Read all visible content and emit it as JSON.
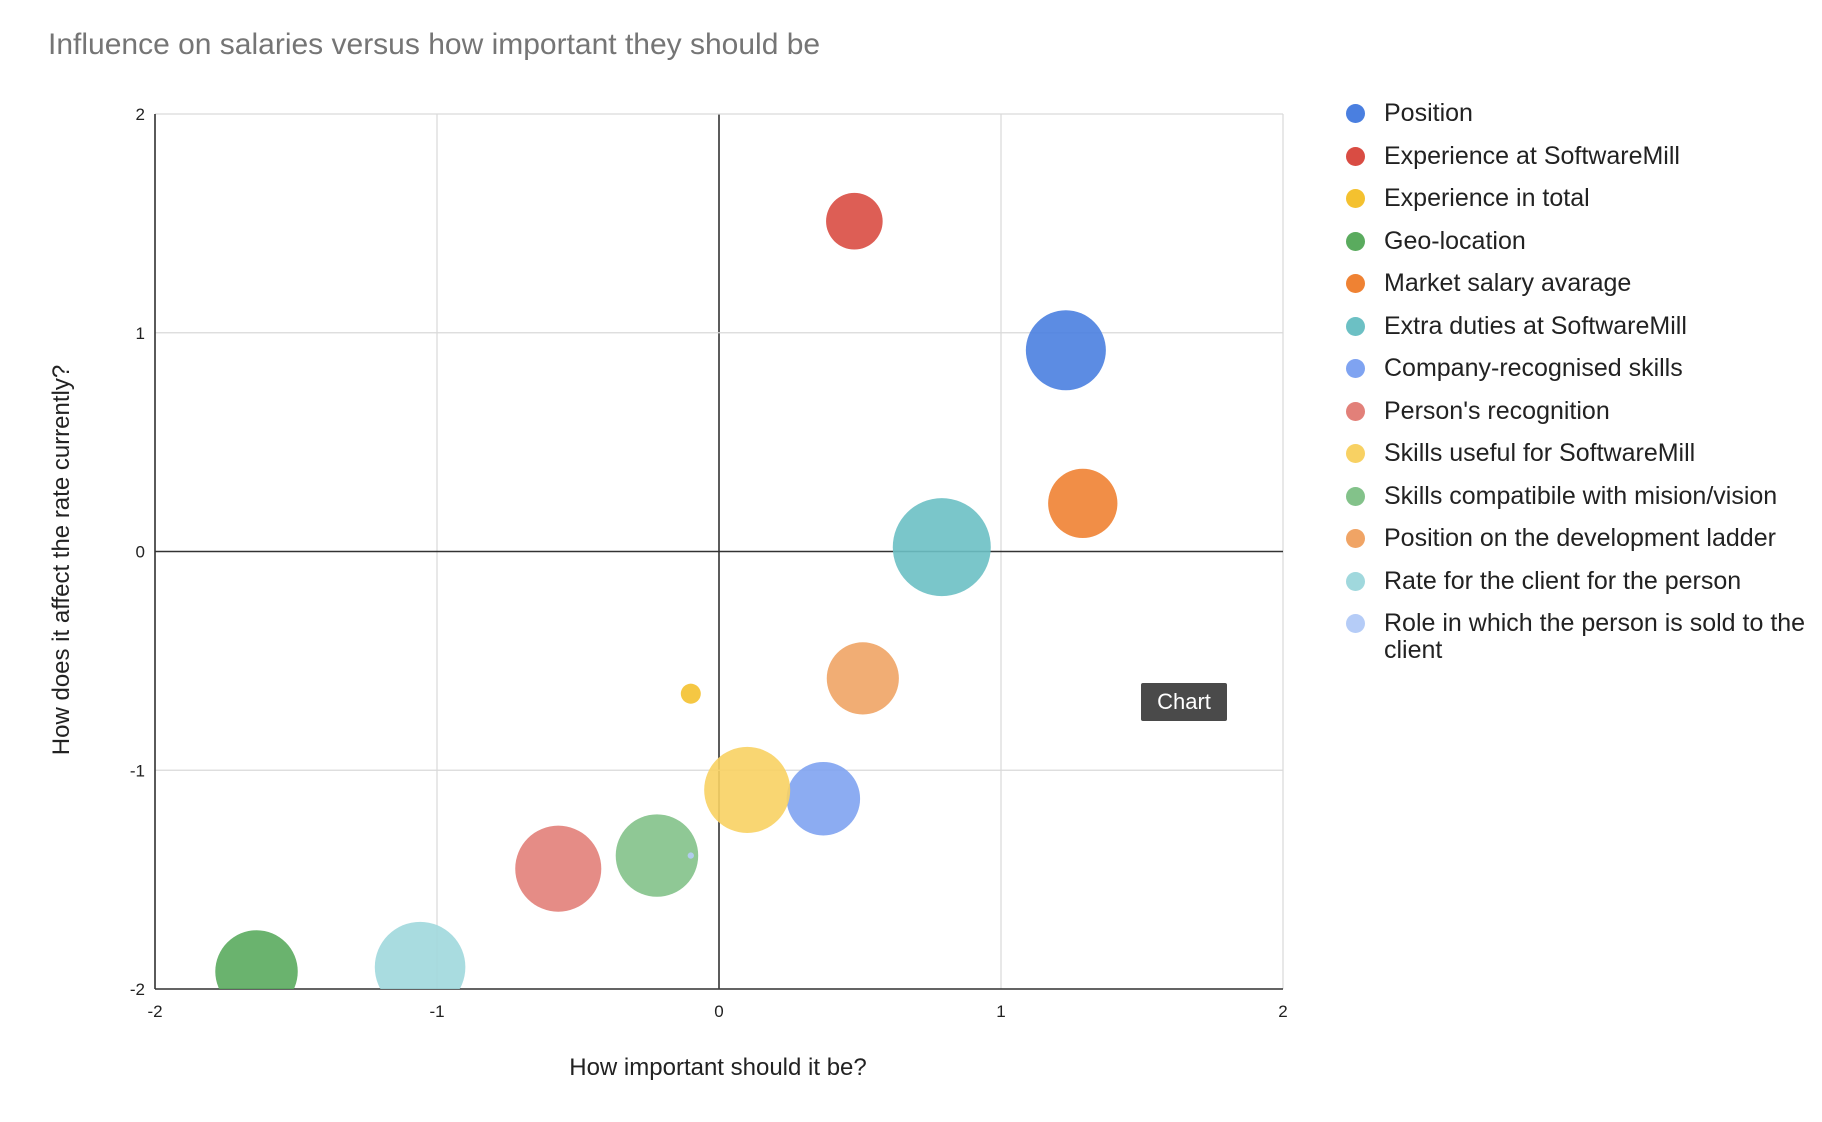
{
  "chart_data": {
    "type": "bubble",
    "title": "Influence on salaries versus how important they should be",
    "xlabel": "How important should it be?",
    "ylabel": "How does it affect the rate currently?",
    "xlim": [
      -2,
      2
    ],
    "ylim": [
      -2,
      2
    ],
    "x_ticks": [
      "-2",
      "-1",
      "0",
      "1",
      "2"
    ],
    "y_ticks": [
      "-2",
      "-1",
      "0",
      "1",
      "2"
    ],
    "grid": true,
    "legend_position": "right",
    "series": [
      {
        "name": "Position",
        "x": 1.23,
        "y": 0.92,
        "size": 3.2,
        "color": "#4a7fe0"
      },
      {
        "name": "Experience at SoftwareMill",
        "x": 0.48,
        "y": 1.51,
        "size": 1.6,
        "color": "#d94c43"
      },
      {
        "name": "Experience in total",
        "x": -0.1,
        "y": -0.65,
        "size": 0.2,
        "color": "#f4c12f"
      },
      {
        "name": "Geo-location",
        "x": -1.64,
        "y": -1.92,
        "size": 3.4,
        "color": "#5aab5e"
      },
      {
        "name": "Market salary avarage",
        "x": 1.29,
        "y": 0.22,
        "size": 2.4,
        "color": "#ef8233"
      },
      {
        "name": "Extra duties at SoftwareMill",
        "x": 0.79,
        "y": 0.02,
        "size": 4.8,
        "color": "#6cc0c4"
      },
      {
        "name": "Company-recognised skills",
        "x": 0.37,
        "y": -1.13,
        "size": 2.7,
        "color": "#7fa3f1"
      },
      {
        "name": "Person's recognition",
        "x": -0.57,
        "y": -1.45,
        "size": 3.7,
        "color": "#e28079"
      },
      {
        "name": "Skills useful for SoftwareMill",
        "x": 0.1,
        "y": -1.09,
        "size": 3.7,
        "color": "#f8d163"
      },
      {
        "name": "Skills compatibile with mision/vision",
        "x": -0.22,
        "y": -1.39,
        "size": 3.4,
        "color": "#83c28a"
      },
      {
        "name": "Position on the development ladder",
        "x": 0.51,
        "y": -0.58,
        "size": 2.6,
        "color": "#f0a465"
      },
      {
        "name": "Rate for the client for the person",
        "x": -1.06,
        "y": -1.9,
        "size": 4.1,
        "color": "#a0d8dd"
      },
      {
        "name": "Role in which the person is sold to the client",
        "x": -0.1,
        "y": -1.39,
        "size": 0.02,
        "color": "#b5ccf7"
      }
    ]
  },
  "tooltip": {
    "label": "Chart"
  }
}
